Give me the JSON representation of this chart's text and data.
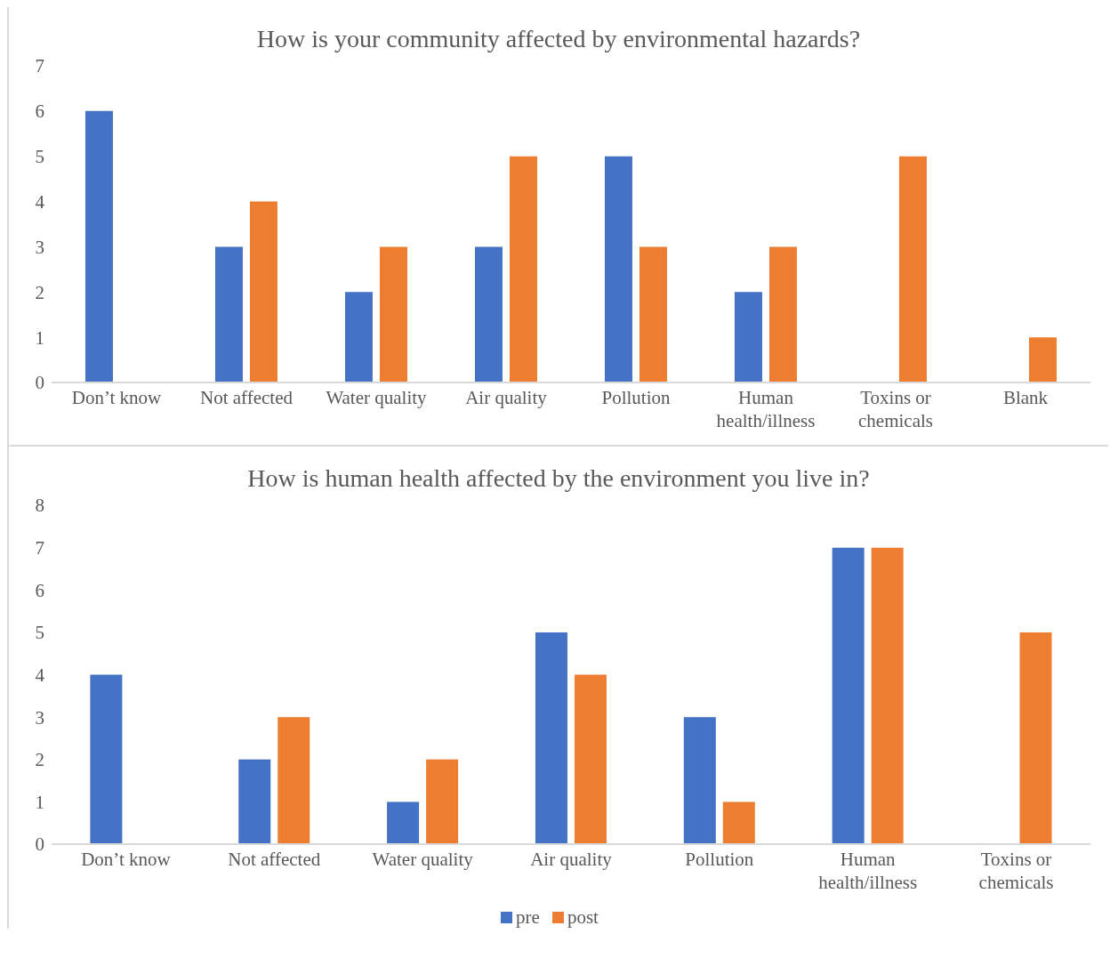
{
  "chart_data": [
    {
      "type": "bar",
      "title": "How is your community affected by environmental hazards?",
      "categories": [
        "Don’t know",
        "Not affected",
        "Water quality",
        "Air quality",
        "Pollution",
        "Human health/illness",
        "Toxins or chemicals",
        "Blank"
      ],
      "series": [
        {
          "color": "#4472c4",
          "values": [
            6,
            3,
            2,
            3,
            5,
            2,
            null,
            null
          ]
        },
        {
          "color": "#ed7d31",
          "values": [
            null,
            4,
            3,
            5,
            3,
            3,
            5,
            1
          ]
        }
      ],
      "ylim": [
        0,
        7
      ],
      "yticks": [
        0,
        1,
        2,
        3,
        4,
        5,
        6,
        7
      ],
      "grid": false,
      "legend": false
    },
    {
      "type": "bar",
      "title": "How is human health affected by the environment you live in?",
      "categories": [
        "Don’t know",
        "Not affected",
        "Water quality",
        "Air quality",
        "Pollution",
        "Human health/illness",
        "Toxins or chemicals"
      ],
      "series": [
        {
          "name": "pre",
          "color": "#4472c4",
          "values": [
            4,
            2,
            1,
            5,
            3,
            7,
            null
          ]
        },
        {
          "name": "post",
          "color": "#ed7d31",
          "values": [
            null,
            3,
            2,
            4,
            1,
            7,
            5
          ]
        }
      ],
      "ylim": [
        0,
        8
      ],
      "yticks": [
        0,
        1,
        2,
        3,
        4,
        5,
        6,
        7,
        8
      ],
      "grid": false,
      "legend": "bottom"
    }
  ]
}
